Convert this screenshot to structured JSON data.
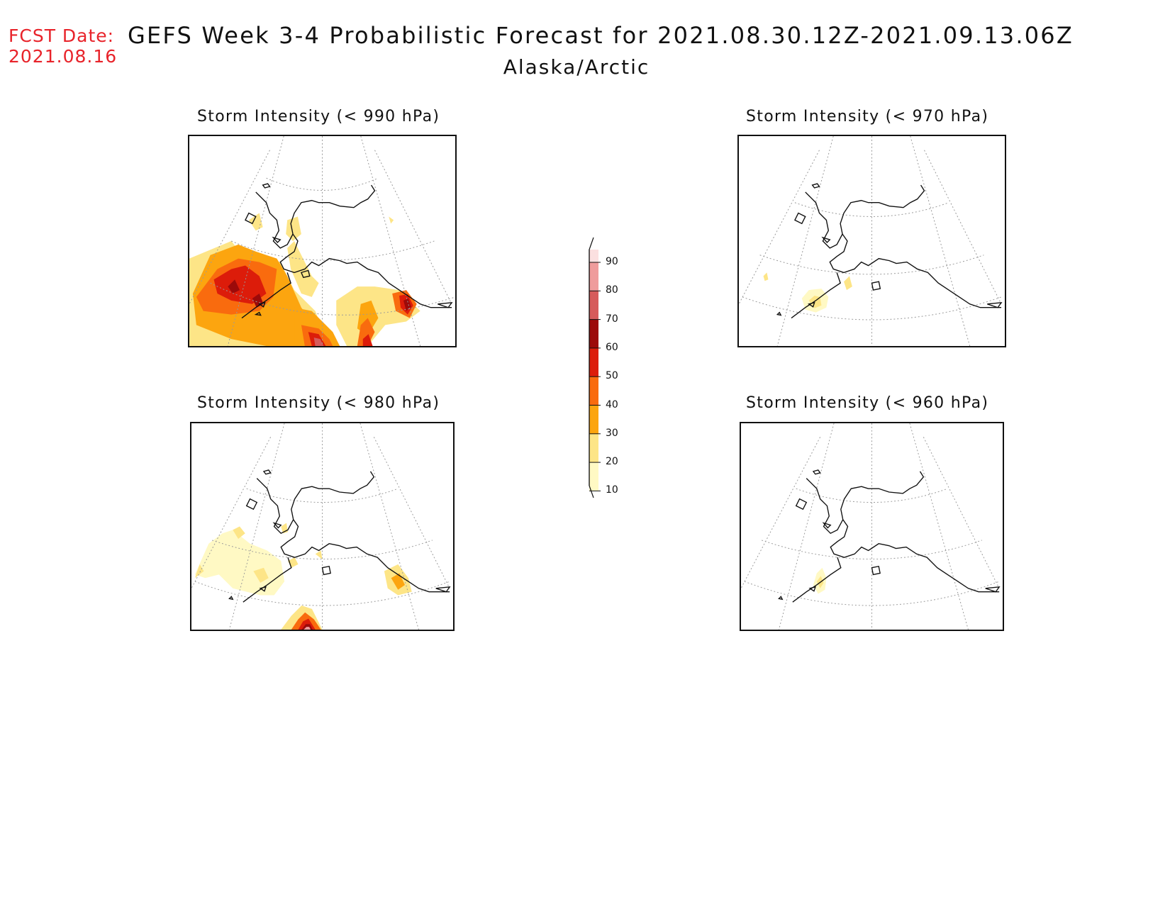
{
  "header": {
    "fcst_label": "FCST Date:",
    "fcst_date": "2021.08.16",
    "title": "GEFS Week 3-4 Probabilistic Forecast for 2021.08.30.12Z-2021.09.13.06Z",
    "region": "Alaska/Arctic"
  },
  "panels": [
    {
      "id": "p990",
      "title": "Storm Intensity (< 990 hPa)"
    },
    {
      "id": "p970",
      "title": "Storm Intensity (< 970 hPa)"
    },
    {
      "id": "p980",
      "title": "Storm Intensity (< 980 hPa)"
    },
    {
      "id": "p960",
      "title": "Storm Intensity (< 960 hPa)"
    }
  ],
  "colorbar": {
    "levels": [
      "90",
      "80",
      "70",
      "60",
      "50",
      "40",
      "30",
      "20",
      "10"
    ],
    "colors": {
      "10": "#fff9c4",
      "20": "#fde587",
      "30": "#fca50f",
      "40": "#f96b0e",
      "50": "#dc1c0a",
      "60": "#9c0a0a",
      "70": "#d65b5b",
      "80": "#ef9c9c",
      "90": "#fbe0e0"
    }
  }
}
